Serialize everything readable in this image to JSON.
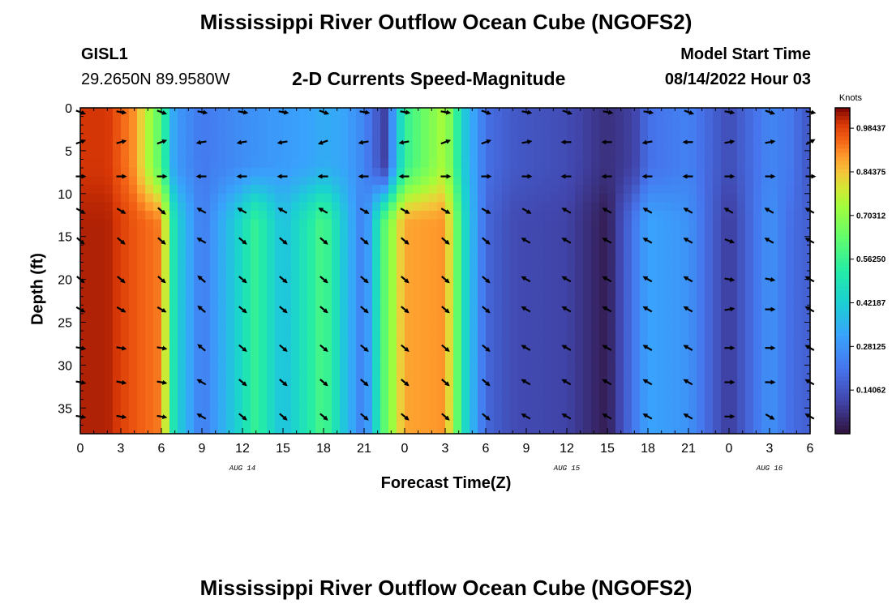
{
  "page_title": "Mississippi River Outflow Ocean Cube (NGOFS2)",
  "page_title_repeat": "Mississippi River Outflow Ocean Cube (NGOFS2)",
  "station": {
    "id": "GISL1",
    "coords": "29.2650N  89.9580W"
  },
  "model": {
    "label": "Model Start Time",
    "value": "08/14/2022 Hour 03"
  },
  "chart_data": {
    "type": "heatmap",
    "title": "2-D Currents Speed-Magnitude",
    "xlabel": "Forecast Time(Z)",
    "ylabel": "Depth (ft)",
    "colorbar_title": "Knots",
    "colorbar_ticks": [
      "0.98437",
      "0.84375",
      "0.70312",
      "0.56250",
      "0.42187",
      "0.28125",
      "0.14062"
    ],
    "colorbar_values": [
      0.98437,
      0.84375,
      0.70312,
      0.5625,
      0.42187,
      0.28125,
      0.14062
    ],
    "value_range": [
      0,
      1.05
    ],
    "xlim": [
      0,
      54
    ],
    "ylim": [
      38,
      0
    ],
    "x_ticks": [
      0,
      3,
      6,
      9,
      12,
      15,
      18,
      21,
      24,
      27,
      30,
      33,
      36,
      39,
      42,
      45,
      48,
      51,
      54
    ],
    "x_tick_labels": [
      "0",
      "3",
      "6",
      "9",
      "12",
      "15",
      "18",
      "21",
      "0",
      "3",
      "6",
      "9",
      "12",
      "15",
      "18",
      "21",
      "0",
      "3",
      "6"
    ],
    "y_ticks": [
      0,
      5,
      10,
      15,
      20,
      25,
      30,
      35
    ],
    "y_tick_labels": [
      "0",
      "5",
      "10",
      "15",
      "20",
      "25",
      "30",
      "35"
    ],
    "date_labels": [
      {
        "text": "AUG 14",
        "x": 12
      },
      {
        "text": "AUG 15",
        "x": 36
      },
      {
        "text": "AUG 16",
        "x": 51
      }
    ],
    "speed_profile": {
      "times": [
        0,
        2,
        4,
        6,
        7,
        9,
        11.5,
        13,
        15,
        17,
        18,
        19.5,
        21,
        22.5,
        24,
        27,
        28.5,
        30,
        32,
        36,
        39,
        41,
        42,
        45,
        48,
        51,
        52.5,
        54
      ],
      "upper_speed": [
        1.0,
        1.0,
        0.9,
        0.6,
        0.3,
        0.22,
        0.26,
        0.28,
        0.3,
        0.32,
        0.34,
        0.32,
        0.25,
        0.1,
        0.55,
        0.75,
        0.4,
        0.2,
        0.15,
        0.12,
        0.06,
        0.1,
        0.2,
        0.24,
        0.12,
        0.25,
        0.22,
        0.14
      ],
      "lower_speed": [
        1.02,
        1.02,
        0.96,
        0.92,
        0.45,
        0.22,
        0.42,
        0.56,
        0.38,
        0.52,
        0.6,
        0.4,
        0.22,
        0.62,
        0.88,
        0.9,
        0.45,
        0.18,
        0.12,
        0.1,
        0.02,
        0.22,
        0.32,
        0.28,
        0.08,
        0.28,
        0.2,
        0.16
      ]
    },
    "arrow_depths": [
      0.5,
      4,
      8,
      12,
      15.5,
      20,
      23.5,
      28,
      32,
      36
    ],
    "arrow_times": [
      0,
      3,
      6,
      9,
      12,
      15,
      18,
      21,
      24,
      27,
      30,
      33,
      36,
      39,
      42,
      45,
      48,
      51,
      54
    ],
    "arrow_directions": [
      [
        110,
        100,
        110,
        100,
        100,
        100,
        110,
        100,
        100,
        100,
        110,
        100,
        110,
        100,
        100,
        110,
        100,
        110,
        100
      ],
      [
        70,
        75,
        70,
        260,
        260,
        260,
        250,
        260,
        260,
        70,
        70,
        80,
        270,
        270,
        260,
        270,
        80,
        80,
        60
      ],
      [
        90,
        90,
        90,
        270,
        270,
        270,
        270,
        270,
        270,
        90,
        90,
        90,
        270,
        270,
        270,
        270,
        90,
        90,
        90
      ],
      [
        120,
        120,
        130,
        300,
        300,
        300,
        300,
        120,
        120,
        120,
        120,
        120,
        300,
        300,
        300,
        300,
        300,
        300,
        300
      ],
      [
        130,
        130,
        130,
        300,
        130,
        130,
        130,
        130,
        130,
        130,
        130,
        300,
        300,
        300,
        300,
        300,
        110,
        300,
        300
      ],
      [
        130,
        130,
        130,
        310,
        130,
        130,
        130,
        130,
        130,
        130,
        130,
        300,
        300,
        300,
        300,
        300,
        100,
        100,
        300
      ],
      [
        120,
        120,
        120,
        310,
        130,
        130,
        130,
        130,
        130,
        130,
        130,
        300,
        300,
        300,
        300,
        300,
        80,
        90,
        300
      ],
      [
        100,
        100,
        100,
        310,
        130,
        130,
        130,
        130,
        130,
        130,
        130,
        300,
        300,
        300,
        300,
        300,
        90,
        90,
        300
      ],
      [
        100,
        100,
        100,
        300,
        130,
        130,
        130,
        130,
        130,
        130,
        130,
        300,
        300,
        300,
        300,
        300,
        90,
        90,
        300
      ],
      [
        100,
        100,
        100,
        300,
        130,
        130,
        130,
        130,
        130,
        130,
        130,
        300,
        300,
        300,
        300,
        300,
        90,
        120,
        300
      ]
    ]
  }
}
